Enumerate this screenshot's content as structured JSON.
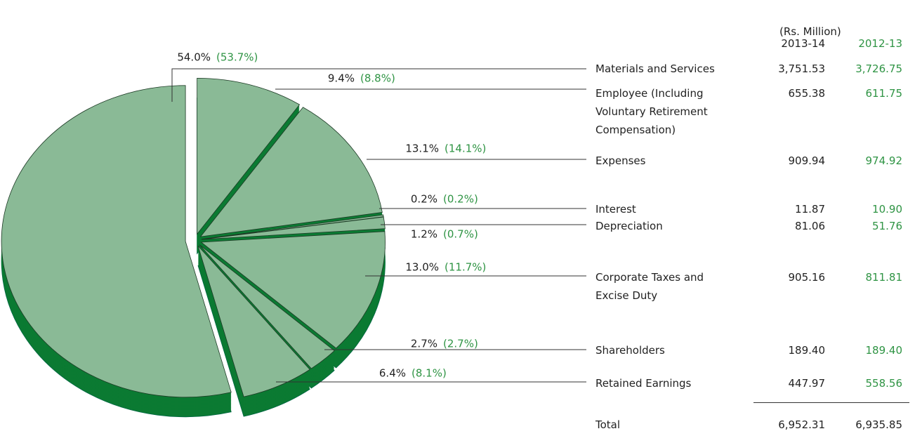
{
  "chart_data": {
    "type": "pie",
    "unit_label": "(Rs. Million)",
    "categories": [
      "Materials and Services",
      "Employee (Including Voluntary Retirement Compensation)",
      "Expenses",
      "Interest",
      "Depreciation",
      "Corporate Taxes and Excise Duty",
      "Shareholders",
      "Retained Earnings"
    ],
    "slice_color": "#8aba96",
    "side_color": "#0b7a32",
    "series": [
      {
        "name": "2013-14",
        "color": "#222222",
        "values": [
          54.0,
          9.4,
          13.1,
          0.2,
          1.2,
          13.0,
          2.7,
          6.4
        ],
        "value_labels": [
          "54.0%",
          "9.4%",
          "13.1%",
          "0.2%",
          "1.2%",
          "13.0%",
          "2.7%",
          "6.4%"
        ],
        "amounts": [
          "3,751.53",
          "655.38",
          "909.94",
          "11.87",
          "81.06",
          "905.16",
          "189.40",
          "447.97"
        ],
        "total": "6,952.31"
      },
      {
        "name": "2012-13",
        "color": "#2f9444",
        "values": [
          53.7,
          8.8,
          14.1,
          0.2,
          0.7,
          11.7,
          2.7,
          8.1
        ],
        "value_labels": [
          "(53.7%)",
          "(8.8%)",
          "(14.1%)",
          "(0.2%)",
          "(0.7%)",
          "(11.7%)",
          "(2.7%)",
          "(8.1%)"
        ],
        "amounts": [
          "3,726.75",
          "611.75",
          "974.92",
          "10.90",
          "51.76",
          "811.81",
          "189.40",
          "558.56"
        ],
        "total": "6,935.85"
      }
    ],
    "total_label": "Total"
  }
}
